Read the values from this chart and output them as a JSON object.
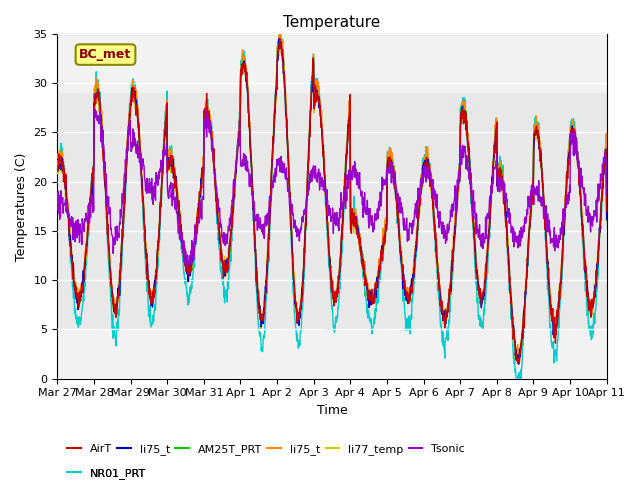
{
  "title": "Temperature",
  "xlabel": "Time",
  "ylabel": "Temperatures (C)",
  "ylim": [
    0,
    35
  ],
  "x_tick_labels": [
    "Mar 27",
    "Mar 28",
    "Mar 29",
    "Mar 30",
    "Mar 31",
    "Apr 1",
    "Apr 2",
    "Apr 3",
    "Apr 4",
    "Apr 5",
    "Apr 6",
    "Apr 7",
    "Apr 8",
    "Apr 9",
    "Apr 10",
    "Apr 11"
  ],
  "x_tick_positions": [
    0,
    1,
    2,
    3,
    4,
    5,
    6,
    7,
    8,
    9,
    10,
    11,
    12,
    13,
    14,
    15
  ],
  "shaded_ymin": 5,
  "shaded_ymax": 29,
  "series_colors": {
    "AirT": "#cc0000",
    "li75_t": "#0000cc",
    "AM25T_PRT": "#00cc00",
    "li75_t_2": "#ff8800",
    "li77_temp": "#cccc00",
    "Tsonic": "#9900cc",
    "NR01_PRT": "#00cccc"
  },
  "legend_labels": [
    "AirT",
    "li75_t",
    "AM25T_PRT",
    "li75_t",
    "li77_temp",
    "Tsonic",
    "NR01_PRT"
  ],
  "legend_colors": [
    "#cc0000",
    "#0000cc",
    "#00cc00",
    "#ff8800",
    "#cccc00",
    "#9900cc",
    "#00cccc"
  ],
  "bc_met_box_color": "#ffff88",
  "bc_met_text_color": "#880000",
  "figure_background": "#ffffff",
  "n_days": 15,
  "daily_peaks": [
    22,
    29,
    29,
    22,
    27,
    32,
    34,
    29,
    16,
    22,
    22,
    27,
    21,
    25,
    25,
    17
  ],
  "daily_mins": [
    8,
    7,
    8,
    11,
    11,
    6,
    6,
    8,
    8,
    8,
    6,
    8,
    2,
    5,
    7,
    6
  ],
  "tsonic_peaks": [
    18,
    27,
    24,
    19,
    26,
    22,
    22,
    21,
    21,
    21,
    21,
    23,
    20,
    19,
    24,
    19
  ],
  "tsonic_mins": [
    15,
    14,
    19,
    12,
    14,
    15,
    15,
    16,
    16,
    15,
    15,
    14,
    14,
    14,
    16,
    16
  ],
  "nr01_extra_dip": 2.5
}
